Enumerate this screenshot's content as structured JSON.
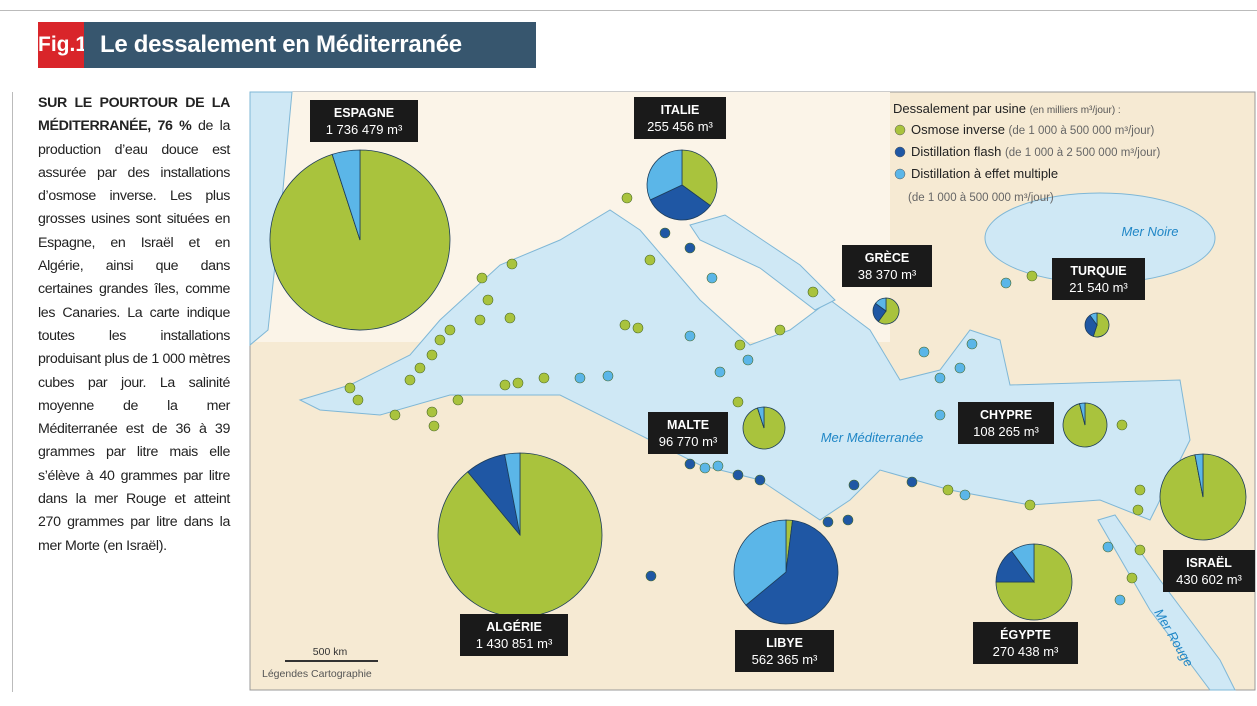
{
  "header": {
    "fig": "Fig.1",
    "title": "Le dessalement en Méditerranée"
  },
  "intro": {
    "lead": "SUR LE POURTOUR DE LA MÉDITERRANÉE, 76 %",
    "body": "de la production d’eau douce est assurée par des installations d’osmose inverse. Les plus grosses usines sont situées en Espagne, en Israël et en Algérie, ainsi que dans certaines grandes îles, comme les Canaries. La carte indique toutes les installations produisant plus de 1 000 mètres cubes par jour. La salinité moyenne de la mer Méditerranée est de 36 à 39 grammes par litre mais elle s’élève à 40 grammes par litre dans la mer Rouge et atteint 270 grammes par litre dans la mer Morte (en Israël)."
  },
  "legend": {
    "title": "Dessalement par usine",
    "unit": "(en milliers m³/jour) :",
    "items": [
      {
        "name": "Osmose inverse",
        "range": "(de 1 000 à 500 000 m³/jour)",
        "color": "#a9c33d"
      },
      {
        "name": "Distillation flash",
        "range": "(de 1 000 à 2 500 000 m³/jour)",
        "color": "#1f57a4"
      },
      {
        "name": "Distillation à effet multiple",
        "range": "(de 1 000 à 500 000 m³/jour)",
        "color": "#5bb6e8"
      }
    ]
  },
  "countries": [
    {
      "name": "ESPAGNE",
      "total": "1 736 479 m³",
      "shares": [
        95,
        0,
        5
      ]
    },
    {
      "name": "ITALIE",
      "total": "255 456  m³",
      "shares": [
        35,
        33,
        32
      ]
    },
    {
      "name": "GRÈCE",
      "total": "38 370  m³",
      "shares": [
        60,
        25,
        15
      ]
    },
    {
      "name": "TURQUIE",
      "total": "21 540  m³",
      "shares": [
        55,
        35,
        10
      ]
    },
    {
      "name": "MALTE",
      "total": "96 770  m³",
      "shares": [
        95,
        0,
        5
      ]
    },
    {
      "name": "CHYPRE",
      "total": "108 265  m³",
      "shares": [
        96,
        0,
        4
      ]
    },
    {
      "name": "ALGÉRIE",
      "total": "1 430 851  m³",
      "shares": [
        89,
        8,
        3
      ]
    },
    {
      "name": "LIBYE",
      "total": "562 365  m³",
      "shares": [
        2,
        62,
        36
      ]
    },
    {
      "name": "ÉGYPTE",
      "total": "270 438  m³",
      "shares": [
        75,
        15,
        10
      ]
    },
    {
      "name": "ISRAËL",
      "total": "430 602  m³",
      "shares": [
        97,
        0,
        3
      ]
    }
  ],
  "seas": [
    "Mer Noire",
    "Mer Méditerranée",
    "Mer Rouge"
  ],
  "scale": {
    "distance": "500 km",
    "credit": "Légendes Cartographie"
  }
}
